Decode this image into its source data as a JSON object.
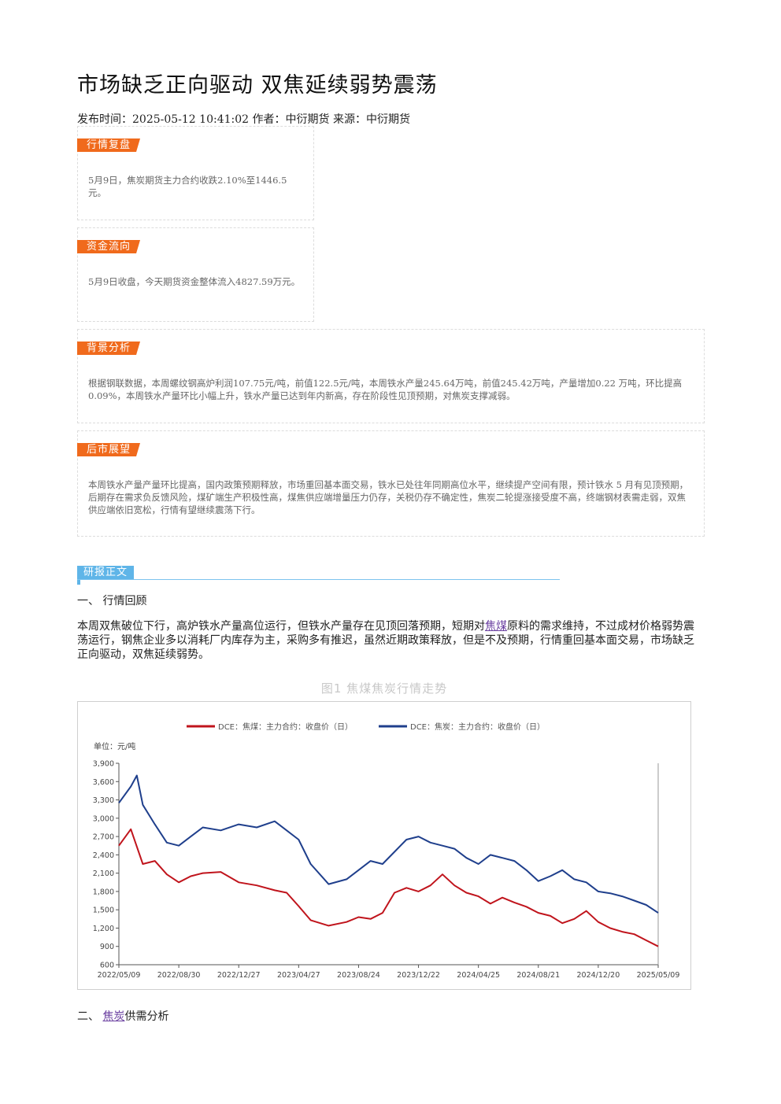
{
  "article": {
    "title": "市场缺乏正向驱动 双焦延续弱势震荡",
    "meta": "发布时间：2025-05-12 10:41:02 作者：中衍期货 来源：中衍期货"
  },
  "boxes": [
    {
      "tag": "行情复盘",
      "text": "5月9日，焦炭期货主力合约收跌2.10%至1446.5元。"
    },
    {
      "tag": "资金流向",
      "text": "5月9日收盘，今天期货资金整体流入4827.59万元。"
    },
    {
      "tag": "背景分析",
      "text": "根据钢联数据，本周螺纹钢高炉利润107.75元/吨，前值122.5元/吨，本周铁水产量245.64万吨，前值245.42万吨，产量增加0.22 万吨，环比提高0.09%，本周铁水产量环比小幅上升，铁水产量已达到年内新高，存在阶段性见顶预期，对焦炭支撑减弱。"
    },
    {
      "tag": "后市展望",
      "text": "本周铁水产量产量环比提高，国内政策预期释放，市场重回基本面交易，铁水已处往年同期高位水平，继续提产空间有限，预计铁水 5 月有见顶预期，后期存在需求负反馈风险，煤矿端生产积极性高，煤焦供应端增量压力仍存，关税仍存不确定性，焦炭二轮提涨接受度不高，终端钢材表需走弱，双焦供应端依旧宽松，行情有望继续震荡下行。"
    }
  ],
  "report": {
    "tag": "研报正文",
    "section1": "一、 行情回顾",
    "para_before": "本周双焦破位下行，高炉铁水产量高位运行，但铁水产量存在见顶回落预期，短期对",
    "para_link": "焦煤",
    "para_after": "原料的需求维持，不过成材价格弱势震荡运行，钢焦企业多以消耗厂内库存为主，采购多有推迟，虽然近期政策释放，但是不及预期，行情重回基本面交易，市场缺乏正向驱动，双焦延续弱势。",
    "figure_caption": "图1 焦煤焦炭行情走势",
    "section2_prefix": "二、",
    "section2_link": "焦炭",
    "section2_suffix": "供需分析"
  },
  "chart_data": {
    "type": "line",
    "title": "",
    "unit_label": "单位：元/吨",
    "xlabel": "",
    "ylabel": "",
    "ylim": [
      600,
      3900
    ],
    "yticks": [
      "600",
      "900",
      "1,200",
      "1,500",
      "1,800",
      "2,100",
      "2,400",
      "2,700",
      "3,000",
      "3,300",
      "3,600",
      "3,900"
    ],
    "ytick_values": [
      600,
      900,
      1200,
      1500,
      1800,
      2100,
      2400,
      2700,
      3000,
      3300,
      3600,
      3900
    ],
    "xticks": [
      "2022/05/09",
      "2022/08/30",
      "2022/12/27",
      "2023/04/27",
      "2023/08/24",
      "2023/12/22",
      "2024/04/25",
      "2024/08/21",
      "2024/12/20",
      "2025/05/09"
    ],
    "legend_position": "top",
    "grid": false,
    "series": [
      {
        "name": "DCE：焦煤：主力合约：收盘价（日）",
        "color": "#c0141c",
        "x": [
          0,
          0.2,
          0.4,
          0.6,
          0.8,
          1.0,
          1.2,
          1.4,
          1.7,
          2.0,
          2.3,
          2.6,
          2.8,
          3.0,
          3.2,
          3.5,
          3.8,
          4.0,
          4.2,
          4.4,
          4.6,
          4.8,
          5.0,
          5.2,
          5.4,
          5.6,
          5.8,
          6.0,
          6.2,
          6.4,
          6.6,
          6.8,
          7.0,
          7.2,
          7.4,
          7.6,
          7.8,
          8.0,
          8.2,
          8.4,
          8.6,
          8.8,
          9.0
        ],
        "values": [
          2550,
          2820,
          2250,
          2300,
          2080,
          1950,
          2050,
          2100,
          2120,
          1950,
          1900,
          1820,
          1780,
          1560,
          1330,
          1240,
          1300,
          1380,
          1350,
          1450,
          1780,
          1860,
          1800,
          1900,
          2080,
          1900,
          1780,
          1720,
          1600,
          1700,
          1620,
          1550,
          1450,
          1400,
          1280,
          1350,
          1480,
          1300,
          1200,
          1140,
          1100,
          1000,
          900
        ]
      },
      {
        "name": "DCE：焦炭：主力合约：收盘价（日）",
        "color": "#1f3f8c",
        "x": [
          0,
          0.2,
          0.3,
          0.4,
          0.6,
          0.8,
          1.0,
          1.2,
          1.4,
          1.7,
          2.0,
          2.3,
          2.6,
          2.8,
          3.0,
          3.2,
          3.5,
          3.8,
          4.0,
          4.2,
          4.4,
          4.6,
          4.8,
          5.0,
          5.2,
          5.4,
          5.6,
          5.8,
          6.0,
          6.2,
          6.4,
          6.6,
          6.8,
          7.0,
          7.2,
          7.4,
          7.6,
          7.8,
          8.0,
          8.2,
          8.4,
          8.6,
          8.8,
          9.0
        ],
        "values": [
          3250,
          3520,
          3700,
          3220,
          2900,
          2600,
          2550,
          2700,
          2850,
          2800,
          2900,
          2850,
          2950,
          2800,
          2650,
          2250,
          1920,
          2000,
          2150,
          2300,
          2250,
          2450,
          2650,
          2700,
          2600,
          2550,
          2500,
          2350,
          2250,
          2400,
          2350,
          2300,
          2150,
          1970,
          2050,
          2150,
          2000,
          1950,
          1800,
          1770,
          1720,
          1650,
          1580,
          1450
        ]
      }
    ]
  }
}
